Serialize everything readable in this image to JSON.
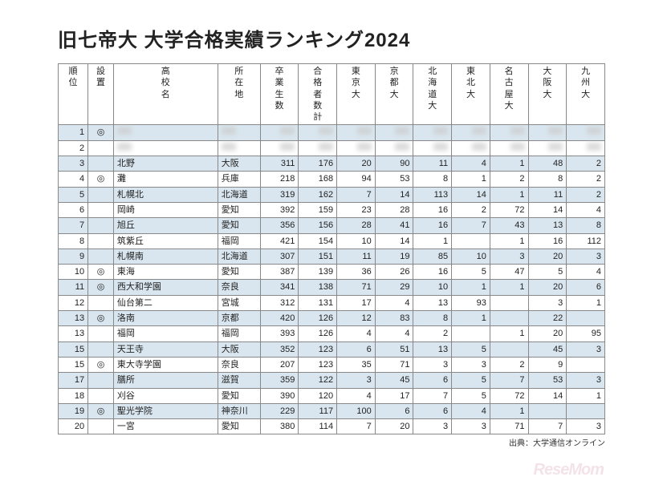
{
  "title": "旧七帝大 大学合格実績ランキング2024",
  "credit": "出典：大学通信オンライン",
  "watermark": "ReseMom",
  "colors": {
    "alt_row": "#d9e6ef",
    "border": "#888888",
    "text": "#222222"
  },
  "table": {
    "columns": [
      {
        "key": "rank",
        "label": "順位",
        "align": "right"
      },
      {
        "key": "mark",
        "label": "設置",
        "align": "center"
      },
      {
        "key": "school",
        "label": "高校名",
        "align": "left"
      },
      {
        "key": "pref",
        "label": "所在地",
        "align": "left"
      },
      {
        "key": "grads",
        "label": "卒業生数",
        "align": "right"
      },
      {
        "key": "total",
        "label": "合格者数計",
        "align": "right"
      },
      {
        "key": "tokyo",
        "label": "東京大",
        "align": "right"
      },
      {
        "key": "kyoto",
        "label": "京都大",
        "align": "right"
      },
      {
        "key": "hokkaido",
        "label": "北海道大",
        "align": "right"
      },
      {
        "key": "tohoku",
        "label": "東北大",
        "align": "right"
      },
      {
        "key": "nagoya",
        "label": "名古屋大",
        "align": "right"
      },
      {
        "key": "osaka",
        "label": "大阪大",
        "align": "right"
      },
      {
        "key": "kyushu",
        "label": "九州大",
        "align": "right"
      }
    ],
    "rows": [
      {
        "rank": 1,
        "mark": "◎",
        "blurred": true
      },
      {
        "rank": 2,
        "mark": "",
        "blurred": true
      },
      {
        "rank": 3,
        "mark": "",
        "school": "北野",
        "pref": "大阪",
        "grads": 311,
        "total": 176,
        "tokyo": 20,
        "kyoto": 90,
        "hokkaido": 11,
        "tohoku": 4,
        "nagoya": 1,
        "osaka": 48,
        "kyushu": 2
      },
      {
        "rank": 4,
        "mark": "◎",
        "school": "灘",
        "pref": "兵庫",
        "grads": 218,
        "total": 168,
        "tokyo": 94,
        "kyoto": 53,
        "hokkaido": 8,
        "tohoku": 1,
        "nagoya": 2,
        "osaka": 8,
        "kyushu": 2
      },
      {
        "rank": 5,
        "mark": "",
        "school": "札幌北",
        "pref": "北海道",
        "grads": 319,
        "total": 162,
        "tokyo": 7,
        "kyoto": 14,
        "hokkaido": 113,
        "tohoku": 14,
        "nagoya": 1,
        "osaka": 11,
        "kyushu": 2
      },
      {
        "rank": 6,
        "mark": "",
        "school": "岡崎",
        "pref": "愛知",
        "grads": 392,
        "total": 159,
        "tokyo": 23,
        "kyoto": 28,
        "hokkaido": 16,
        "tohoku": 2,
        "nagoya": 72,
        "osaka": 14,
        "kyushu": 4
      },
      {
        "rank": 7,
        "mark": "",
        "school": "旭丘",
        "pref": "愛知",
        "grads": 356,
        "total": 156,
        "tokyo": 28,
        "kyoto": 41,
        "hokkaido": 16,
        "tohoku": 7,
        "nagoya": 43,
        "osaka": 13,
        "kyushu": 8
      },
      {
        "rank": 8,
        "mark": "",
        "school": "筑紫丘",
        "pref": "福岡",
        "grads": 421,
        "total": 154,
        "tokyo": 10,
        "kyoto": 14,
        "hokkaido": 1,
        "tohoku": "",
        "nagoya": 1,
        "osaka": 16,
        "kyushu": 112
      },
      {
        "rank": 9,
        "mark": "",
        "school": "札幌南",
        "pref": "北海道",
        "grads": 307,
        "total": 151,
        "tokyo": 11,
        "kyoto": 19,
        "hokkaido": 85,
        "tohoku": 10,
        "nagoya": 3,
        "osaka": 20,
        "kyushu": 3
      },
      {
        "rank": 10,
        "mark": "◎",
        "school": "東海",
        "pref": "愛知",
        "grads": 387,
        "total": 139,
        "tokyo": 36,
        "kyoto": 26,
        "hokkaido": 16,
        "tohoku": 5,
        "nagoya": 47,
        "osaka": 5,
        "kyushu": 4
      },
      {
        "rank": 11,
        "mark": "◎",
        "school": "西大和学園",
        "pref": "奈良",
        "grads": 341,
        "total": 138,
        "tokyo": 71,
        "kyoto": 29,
        "hokkaido": 10,
        "tohoku": 1,
        "nagoya": 1,
        "osaka": 20,
        "kyushu": 6
      },
      {
        "rank": 12,
        "mark": "",
        "school": "仙台第二",
        "pref": "宮城",
        "grads": 312,
        "total": 131,
        "tokyo": 17,
        "kyoto": 4,
        "hokkaido": 13,
        "tohoku": 93,
        "nagoya": "",
        "osaka": 3,
        "kyushu": 1
      },
      {
        "rank": 13,
        "mark": "◎",
        "school": "洛南",
        "pref": "京都",
        "grads": 420,
        "total": 126,
        "tokyo": 12,
        "kyoto": 83,
        "hokkaido": 8,
        "tohoku": 1,
        "nagoya": "",
        "osaka": 22,
        "kyushu": ""
      },
      {
        "rank": 13,
        "mark": "",
        "school": "福岡",
        "pref": "福岡",
        "grads": 393,
        "total": 126,
        "tokyo": 4,
        "kyoto": 4,
        "hokkaido": 2,
        "tohoku": "",
        "nagoya": 1,
        "osaka": 20,
        "kyushu": 95
      },
      {
        "rank": 15,
        "mark": "",
        "school": "天王寺",
        "pref": "大阪",
        "grads": 352,
        "total": 123,
        "tokyo": 6,
        "kyoto": 51,
        "hokkaido": 13,
        "tohoku": 5,
        "nagoya": "",
        "osaka": 45,
        "kyushu": 3
      },
      {
        "rank": 15,
        "mark": "◎",
        "school": "東大寺学園",
        "pref": "奈良",
        "grads": 207,
        "total": 123,
        "tokyo": 35,
        "kyoto": 71,
        "hokkaido": 3,
        "tohoku": 3,
        "nagoya": 2,
        "osaka": 9,
        "kyushu": ""
      },
      {
        "rank": 17,
        "mark": "",
        "school": "膳所",
        "pref": "滋賀",
        "grads": 359,
        "total": 122,
        "tokyo": 3,
        "kyoto": 45,
        "hokkaido": 6,
        "tohoku": 5,
        "nagoya": 7,
        "osaka": 53,
        "kyushu": 3
      },
      {
        "rank": 18,
        "mark": "",
        "school": "刈谷",
        "pref": "愛知",
        "grads": 390,
        "total": 120,
        "tokyo": 4,
        "kyoto": 17,
        "hokkaido": 7,
        "tohoku": 5,
        "nagoya": 72,
        "osaka": 14,
        "kyushu": 1
      },
      {
        "rank": 19,
        "mark": "◎",
        "school": "聖光学院",
        "pref": "神奈川",
        "grads": 229,
        "total": 117,
        "tokyo": 100,
        "kyoto": 6,
        "hokkaido": 6,
        "tohoku": 4,
        "nagoya": 1,
        "osaka": "",
        "kyushu": ""
      },
      {
        "rank": 20,
        "mark": "",
        "school": "一宮",
        "pref": "愛知",
        "grads": 380,
        "total": 114,
        "tokyo": 7,
        "kyoto": 20,
        "hokkaido": 3,
        "tohoku": 3,
        "nagoya": 71,
        "osaka": 7,
        "kyushu": 3
      }
    ]
  }
}
